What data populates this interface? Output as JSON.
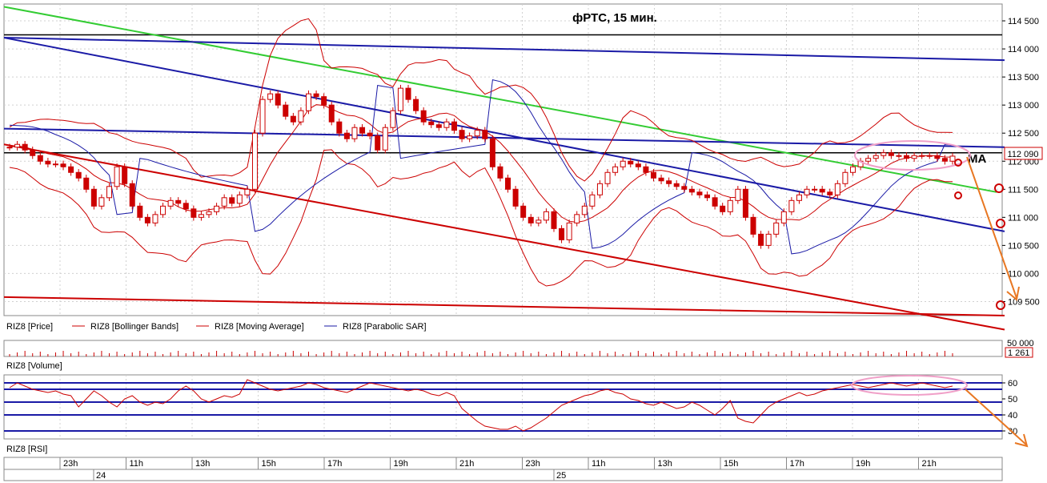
{
  "chart_data": {
    "type": "candlestick",
    "title": "фРТС, 15 мин.",
    "annotation": "MA",
    "price": {
      "ylim": [
        109250,
        114800
      ],
      "ticks": [
        "114 500",
        "114 000",
        "113 500",
        "113 000",
        "112 500",
        "112 000",
        "111 500",
        "111 000",
        "110 500",
        "110 000",
        "109 500"
      ],
      "tick_values": [
        114500,
        114000,
        113500,
        113000,
        112500,
        112000,
        111500,
        111000,
        110500,
        110000,
        109500
      ],
      "last_price_label": "112 090",
      "last_price": 112090,
      "horizontal_lines": [
        {
          "value": 114250,
          "color": "#000000"
        },
        {
          "value": 112150,
          "color": "#000000"
        }
      ],
      "trend_lines": [
        {
          "from": [
            0,
            114750
          ],
          "to": [
            1240,
            111450
          ],
          "color": "#33cc33"
        },
        {
          "from": [
            0,
            114200
          ],
          "to": [
            1250,
            113800
          ],
          "color": "#1a1aa6"
        },
        {
          "from": [
            0,
            114200
          ],
          "to": [
            1250,
            110750
          ],
          "color": "#1a1aa6"
        },
        {
          "from": [
            0,
            112580
          ],
          "to": [
            1250,
            112250
          ],
          "color": "#1a1aa6"
        },
        {
          "from": [
            0,
            112300
          ],
          "to": [
            1250,
            109000
          ],
          "color": "#cc0000"
        },
        {
          "from": [
            0,
            109580
          ],
          "to": [
            1250,
            109250
          ],
          "color": "#cc0000"
        }
      ],
      "closes": [
        112250,
        112300,
        112200,
        112100,
        112000,
        111950,
        111950,
        111900,
        111800,
        111700,
        111500,
        111200,
        111350,
        111550,
        111900,
        111600,
        111200,
        111000,
        110900,
        111050,
        111200,
        111300,
        111250,
        111150,
        111000,
        111050,
        111100,
        111200,
        111350,
        111250,
        111400,
        111500,
        112500,
        113100,
        113200,
        113000,
        112800,
        112700,
        112900,
        113200,
        113150,
        113000,
        112700,
        112500,
        112400,
        112600,
        112500,
        112450,
        112200,
        112600,
        112900,
        113300,
        113100,
        112900,
        112700,
        112650,
        112600,
        112700,
        112550,
        112400,
        112450,
        112550,
        112400,
        111900,
        111700,
        111500,
        111200,
        111000,
        110900,
        110950,
        111100,
        110800,
        110600,
        110900,
        111050,
        111200,
        111400,
        111600,
        111800,
        111900,
        112000,
        111950,
        111900,
        111800,
        111700,
        111650,
        111600,
        111550,
        111500,
        111450,
        111400,
        111350,
        111200,
        111100,
        111300,
        111500,
        111000,
        110700,
        110500,
        110700,
        110900,
        111100,
        111300,
        111400,
        111500,
        111500,
        111450,
        111400,
        111600,
        111800,
        111900,
        112000,
        112050,
        112100,
        112150,
        112100,
        112100,
        112050,
        112100,
        112100,
        112100,
        112050,
        112000,
        112090
      ],
      "series_colors": {
        "candles": "#cc0000",
        "bollinger": "#cc0000",
        "moving_average": "#cc0000",
        "parabolic_sar": "#1a1aa6"
      }
    },
    "legend": [
      {
        "name": "RIZ8 [Price]"
      },
      {
        "name": "RIZ8 [Bollinger Bands]"
      },
      {
        "name": "RIZ8 [Moving Average]"
      },
      {
        "name": "RIZ8 [Parabolic SAR]"
      }
    ],
    "volume": {
      "label": "RIZ8 [Volume]",
      "ticks": [
        "50 000"
      ],
      "last_value_label": "1 261",
      "last_value": 1261
    },
    "rsi": {
      "label": "RIZ8 [RSI]",
      "ylim": [
        25,
        65
      ],
      "ticks": [
        "60",
        "50",
        "40",
        "30"
      ],
      "tick_values": [
        60,
        50,
        40,
        30
      ],
      "levels": [
        60,
        56,
        48,
        40,
        30
      ],
      "values": [
        57,
        60,
        58,
        56,
        55,
        54,
        55,
        53,
        52,
        45,
        50,
        55,
        52,
        48,
        45,
        50,
        52,
        48,
        46,
        48,
        47,
        50,
        55,
        58,
        55,
        50,
        48,
        50,
        52,
        51,
        53,
        62,
        60,
        58,
        56,
        55,
        56,
        57,
        58,
        60,
        59,
        57,
        56,
        55,
        54,
        56,
        58,
        60,
        59,
        58,
        57,
        56,
        55,
        56,
        55,
        53,
        52,
        54,
        52,
        44,
        40,
        36,
        33,
        32,
        31,
        31,
        33,
        30,
        32,
        35,
        38,
        42,
        46,
        48,
        50,
        52,
        53,
        55,
        56,
        54,
        53,
        50,
        49,
        47,
        46,
        48,
        46,
        44,
        45,
        48,
        46,
        43,
        40,
        44,
        49,
        38,
        36,
        35,
        40,
        45,
        48,
        50,
        52,
        54,
        52,
        53,
        55,
        56,
        57,
        58,
        59,
        58,
        57,
        58,
        59,
        60,
        59,
        58,
        59,
        60,
        59,
        58,
        57,
        58
      ]
    },
    "time_axis": {
      "hours": [
        "23h",
        "11h",
        "13h",
        "15h",
        "17h",
        "19h",
        "21h",
        "23h",
        "11h",
        "13h",
        "15h",
        "17h",
        "19h",
        "21h"
      ],
      "days": [
        "24",
        "25"
      ]
    }
  }
}
